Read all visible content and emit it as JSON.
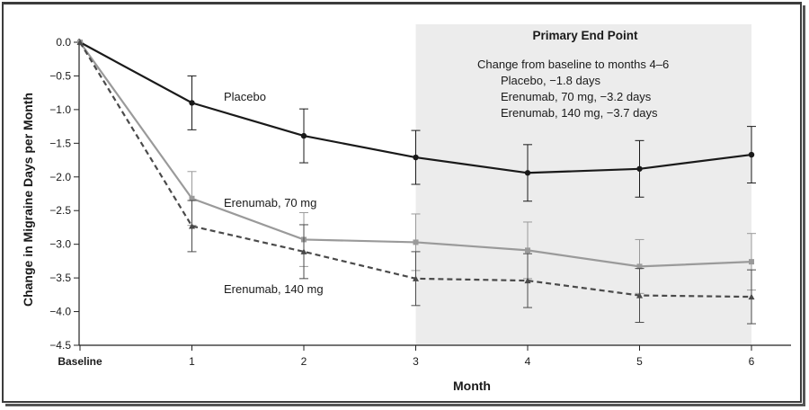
{
  "chart_data": {
    "type": "line",
    "xlabel": "Month",
    "ylabel": "Change in Migraine Days per Month",
    "x": [
      0,
      1,
      2,
      3,
      4,
      5,
      6
    ],
    "x_tick_labels": [
      "Baseline",
      "1",
      "2",
      "3",
      "4",
      "5",
      "6"
    ],
    "xlim": [
      0,
      6
    ],
    "ylim": [
      -4.5,
      0.0
    ],
    "y_ticks": [
      0.0,
      -0.5,
      -1.0,
      -1.5,
      -2.0,
      -2.5,
      -3.0,
      -3.5,
      -4.0,
      -4.5
    ],
    "y_tick_labels": [
      "0.0",
      "−0.5",
      "−1.0",
      "−1.5",
      "−2.0",
      "−2.5",
      "−3.0",
      "−3.5",
      "−4.0",
      "−4.5"
    ],
    "grid": false,
    "series": [
      {
        "name": "Placebo",
        "values": [
          0.0,
          -0.9,
          -1.39,
          -1.71,
          -1.94,
          -1.88,
          -1.67
        ],
        "errors": [
          0.0,
          0.4,
          0.4,
          0.4,
          0.42,
          0.42,
          0.42
        ],
        "color": "#1a1a1a",
        "line_style": "solid",
        "marker": "circle"
      },
      {
        "name": "Erenumab, 70 mg",
        "values": [
          0.0,
          -2.32,
          -2.93,
          -2.97,
          -3.09,
          -3.33,
          -3.26
        ],
        "errors": [
          0.0,
          0.4,
          0.4,
          0.42,
          0.42,
          0.4,
          0.42
        ],
        "color": "#9a9a9a",
        "line_style": "solid",
        "marker": "square"
      },
      {
        "name": "Erenumab, 140 mg",
        "values": [
          0.0,
          -2.73,
          -3.11,
          -3.51,
          -3.54,
          -3.76,
          -3.78
        ],
        "errors": [
          0.0,
          0.38,
          0.4,
          0.4,
          0.4,
          0.4,
          0.4
        ],
        "color": "#4a4a4a",
        "line_style": "dashed",
        "marker": "triangle"
      }
    ],
    "series_labels": {
      "placebo": "Placebo",
      "erenumab70": "Erenumab, 70 mg",
      "erenumab140": "Erenumab, 140 mg"
    },
    "shaded_region": {
      "x_range": [
        3,
        6
      ],
      "color": "#ececec",
      "title": "Primary End Point",
      "lines": [
        "Change from baseline to months 4–6",
        "Placebo, −1.8 days",
        "Erenumab, 70 mg, −3.2 days",
        "Erenumab, 140 mg, −3.7 days"
      ]
    }
  }
}
